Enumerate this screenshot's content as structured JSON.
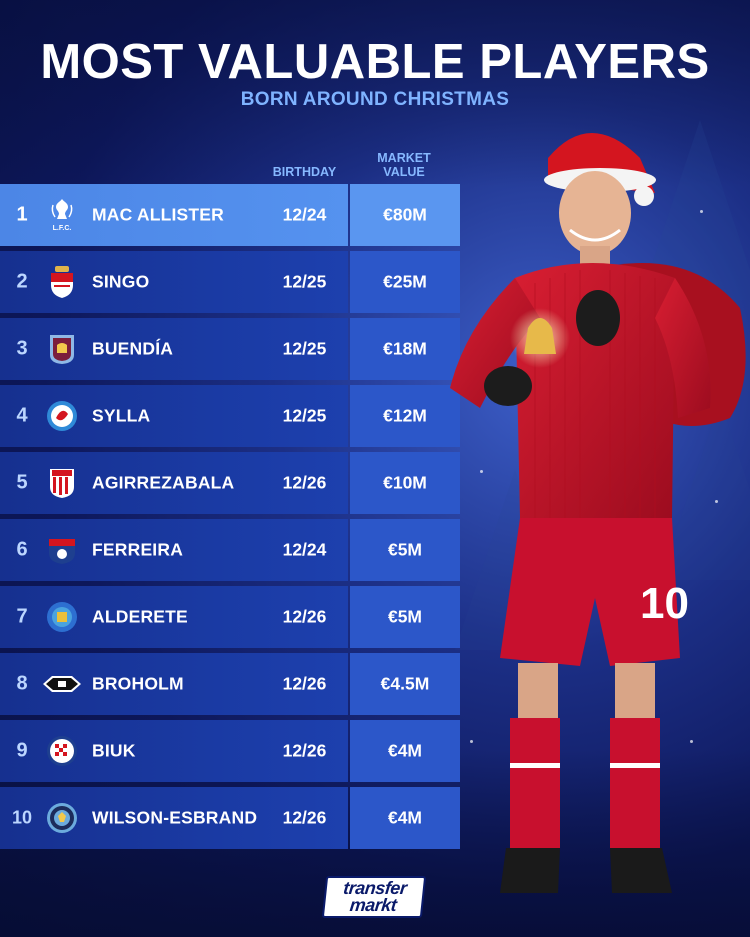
{
  "title": "MOST VALUABLE PLAYERS",
  "subtitle": "BORN AROUND CHRISTMAS",
  "columns": {
    "birthday": "BIRTHDAY",
    "market_value_line1": "MARKET",
    "market_value_line2": "VALUE"
  },
  "players": [
    {
      "rank": "1",
      "club_icon": "liverpool-crest",
      "club_text": "L.F.C.",
      "name": "MAC ALLISTER",
      "birthday": "12/24",
      "value": "€80M"
    },
    {
      "rank": "2",
      "club_icon": "monaco-crest",
      "name": "SINGO",
      "birthday": "12/25",
      "value": "€25M"
    },
    {
      "rank": "3",
      "club_icon": "aston-villa-crest",
      "name": "BUENDÍA",
      "birthday": "12/25",
      "value": "€18M"
    },
    {
      "rank": "4",
      "club_icon": "strasbourg-crest",
      "name": "SYLLA",
      "birthday": "12/25",
      "value": "€12M"
    },
    {
      "rank": "5",
      "club_icon": "athletic-club-crest",
      "name": "AGIRREZABALA",
      "birthday": "12/26",
      "value": "€10M"
    },
    {
      "rank": "6",
      "club_icon": "fc-dallas-crest",
      "name": "FERREIRA",
      "birthday": "12/24",
      "value": "€5M"
    },
    {
      "rank": "7",
      "club_icon": "getafe-crest",
      "name": "ALDERETE",
      "birthday": "12/26",
      "value": "€5M"
    },
    {
      "rank": "8",
      "club_icon": "rosenborg-crest",
      "name": "BROHOLM",
      "birthday": "12/26",
      "value": "€4.5M"
    },
    {
      "rank": "9",
      "club_icon": "hajduk-split-crest",
      "name": "BIUK",
      "birthday": "12/26",
      "value": "€4M"
    },
    {
      "rank": "10",
      "club_icon": "manchester-city-crest",
      "name": "WILSON-ESBRAND",
      "birthday": "12/26",
      "value": "€4M"
    }
  ],
  "logo": {
    "line1": "transfer",
    "line2": "markt"
  },
  "colors": {
    "background": "#0d175a",
    "row": "#1a3aa3",
    "value_cell": "#2c57c9",
    "highlight_row": "#5592ef",
    "subtitle": "#7fb3ff",
    "kit_red": "#c8102e"
  }
}
